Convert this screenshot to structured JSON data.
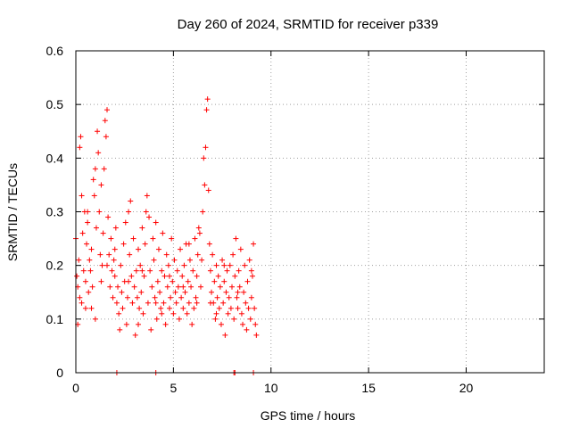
{
  "chart_data": {
    "type": "scatter",
    "title": "Day 260 of 2024, SRMTID for receiver p339",
    "xlabel": "GPS time / hours",
    "ylabel": "SRMTID / TECUs",
    "xlim": [
      0,
      24
    ],
    "ylim": [
      0,
      0.6
    ],
    "x_ticks": [
      0,
      5,
      10,
      15,
      20
    ],
    "y_ticks": [
      0,
      0.1,
      0.2,
      0.3,
      0.4,
      0.5,
      0.6
    ],
    "x_tick_labels": [
      "0",
      "5",
      "10",
      "15",
      "20"
    ],
    "y_tick_labels": [
      "0",
      "0.1",
      "0.2",
      "0.3",
      "0.4",
      "0.5",
      "0.6"
    ],
    "grid": true,
    "marker": "+",
    "color": "#ff0000",
    "series": [
      {
        "name": "SRMTID",
        "points": [
          [
            0.0,
            0.25
          ],
          [
            0.05,
            0.18
          ],
          [
            0.1,
            0.16
          ],
          [
            0.15,
            0.21
          ],
          [
            0.2,
            0.14
          ],
          [
            0.2,
            0.42
          ],
          [
            0.25,
            0.44
          ],
          [
            0.3,
            0.33
          ],
          [
            0.3,
            0.13
          ],
          [
            0.35,
            0.26
          ],
          [
            0.4,
            0.19
          ],
          [
            0.45,
            0.3
          ],
          [
            0.5,
            0.17
          ],
          [
            0.5,
            0.12
          ],
          [
            0.55,
            0.24
          ],
          [
            0.6,
            0.28
          ],
          [
            0.65,
            0.15
          ],
          [
            0.7,
            0.21
          ],
          [
            0.75,
            0.19
          ],
          [
            0.8,
            0.23
          ],
          [
            0.85,
            0.16
          ],
          [
            0.9,
            0.36
          ],
          [
            0.95,
            0.33
          ],
          [
            1.0,
            0.38
          ],
          [
            1.0,
            0.1
          ],
          [
            1.05,
            0.27
          ],
          [
            1.1,
            0.45
          ],
          [
            1.15,
            0.41
          ],
          [
            1.2,
            0.3
          ],
          [
            1.25,
            0.22
          ],
          [
            1.3,
            0.35
          ],
          [
            1.35,
            0.2
          ],
          [
            1.4,
            0.26
          ],
          [
            1.45,
            0.38
          ],
          [
            1.5,
            0.47
          ],
          [
            1.55,
            0.44
          ],
          [
            1.6,
            0.49
          ],
          [
            1.65,
            0.29
          ],
          [
            1.7,
            0.22
          ],
          [
            1.75,
            0.16
          ],
          [
            1.8,
            0.25
          ],
          [
            1.85,
            0.19
          ],
          [
            1.9,
            0.14
          ],
          [
            1.95,
            0.21
          ],
          [
            2.0,
            0.18
          ],
          [
            2.05,
            0.27
          ],
          [
            2.1,
            0.13
          ],
          [
            2.15,
            0.16
          ],
          [
            2.2,
            0.11
          ],
          [
            2.25,
            0.08
          ],
          [
            2.3,
            0.2
          ],
          [
            2.35,
            0.15
          ],
          [
            2.4,
            0.12
          ],
          [
            2.45,
            0.24
          ],
          [
            2.5,
            0.17
          ],
          [
            2.55,
            0.28
          ],
          [
            2.6,
            0.09
          ],
          [
            2.65,
            0.14
          ],
          [
            2.7,
            0.3
          ],
          [
            2.75,
            0.22
          ],
          [
            2.8,
            0.32
          ],
          [
            2.85,
            0.18
          ],
          [
            2.9,
            0.13
          ],
          [
            2.95,
            0.25
          ],
          [
            3.0,
            0.16
          ],
          [
            3.05,
            0.07
          ],
          [
            3.1,
            0.19
          ],
          [
            3.15,
            0.14
          ],
          [
            3.2,
            0.23
          ],
          [
            3.25,
            0.12
          ],
          [
            3.3,
            0.2
          ],
          [
            3.35,
            0.15
          ],
          [
            3.4,
            0.27
          ],
          [
            3.45,
            0.11
          ],
          [
            3.5,
            0.18
          ],
          [
            3.55,
            0.24
          ],
          [
            3.6,
            0.3
          ],
          [
            3.65,
            0.33
          ],
          [
            3.7,
            0.13
          ],
          [
            3.75,
            0.29
          ],
          [
            3.8,
            0.19
          ],
          [
            3.85,
            0.08
          ],
          [
            3.9,
            0.16
          ],
          [
            3.95,
            0.25
          ],
          [
            4.0,
            0.21
          ],
          [
            4.05,
            0.14
          ],
          [
            4.1,
            0.28
          ],
          [
            4.15,
            0.1
          ],
          [
            4.2,
            0.17
          ],
          [
            4.25,
            0.23
          ],
          [
            4.3,
            0.15
          ],
          [
            4.35,
            0.12
          ],
          [
            4.4,
            0.19
          ],
          [
            4.45,
            0.26
          ],
          [
            4.5,
            0.13
          ],
          [
            4.55,
            0.18
          ],
          [
            4.6,
            0.09
          ],
          [
            4.65,
            0.22
          ],
          [
            4.7,
            0.16
          ],
          [
            4.75,
            0.2
          ],
          [
            4.8,
            0.12
          ],
          [
            4.85,
            0.14
          ],
          [
            4.9,
            0.25
          ],
          [
            4.95,
            0.17
          ],
          [
            5.0,
            0.11
          ],
          [
            5.05,
            0.21
          ],
          [
            5.1,
            0.15
          ],
          [
            5.15,
            0.13
          ],
          [
            5.2,
            0.19
          ],
          [
            5.25,
            0.16
          ],
          [
            5.3,
            0.1
          ],
          [
            5.35,
            0.23
          ],
          [
            5.4,
            0.14
          ],
          [
            5.45,
            0.18
          ],
          [
            5.5,
            0.12
          ],
          [
            5.55,
            0.2
          ],
          [
            5.6,
            0.15
          ],
          [
            5.65,
            0.24
          ],
          [
            5.7,
            0.11
          ],
          [
            5.75,
            0.17
          ],
          [
            5.8,
            0.13
          ],
          [
            5.85,
            0.21
          ],
          [
            5.9,
            0.16
          ],
          [
            5.95,
            0.09
          ],
          [
            6.0,
            0.19
          ],
          [
            6.05,
            0.12
          ],
          [
            6.1,
            0.25
          ],
          [
            6.15,
            0.14
          ],
          [
            6.2,
            0.18
          ],
          [
            6.25,
            0.22
          ],
          [
            6.3,
            0.27
          ],
          [
            6.35,
            0.26
          ],
          [
            6.4,
            0.16
          ],
          [
            6.45,
            0.21
          ],
          [
            6.5,
            0.3
          ],
          [
            6.55,
            0.4
          ],
          [
            6.6,
            0.35
          ],
          [
            6.65,
            0.42
          ],
          [
            6.7,
            0.49
          ],
          [
            6.75,
            0.51
          ],
          [
            6.8,
            0.34
          ],
          [
            6.85,
            0.24
          ],
          [
            6.9,
            0.19
          ],
          [
            6.95,
            0.15
          ],
          [
            7.0,
            0.22
          ],
          [
            7.05,
            0.13
          ],
          [
            7.1,
            0.17
          ],
          [
            7.15,
            0.1
          ],
          [
            7.2,
            0.2
          ],
          [
            7.25,
            0.14
          ],
          [
            7.3,
            0.18
          ],
          [
            7.35,
            0.12
          ],
          [
            7.4,
            0.16
          ],
          [
            7.45,
            0.09
          ],
          [
            7.5,
            0.21
          ],
          [
            7.55,
            0.13
          ],
          [
            7.6,
            0.17
          ],
          [
            7.65,
            0.07
          ],
          [
            7.7,
            0.15
          ],
          [
            7.75,
            0.19
          ],
          [
            7.8,
            0.11
          ],
          [
            7.85,
            0.14
          ],
          [
            7.9,
            0.2
          ],
          [
            7.95,
            0.12
          ],
          [
            8.0,
            0.16
          ],
          [
            8.05,
            0.22
          ],
          [
            8.1,
            0.1
          ],
          [
            8.15,
            0.18
          ],
          [
            8.2,
            0.25
          ],
          [
            8.25,
            0.14
          ],
          [
            8.3,
            0.12
          ],
          [
            8.35,
            0.19
          ],
          [
            8.4,
            0.16
          ],
          [
            8.45,
            0.23
          ],
          [
            8.5,
            0.11
          ],
          [
            8.55,
            0.09
          ],
          [
            8.6,
            0.15
          ],
          [
            8.65,
            0.2
          ],
          [
            8.7,
            0.13
          ],
          [
            8.75,
            0.08
          ],
          [
            8.8,
            0.17
          ],
          [
            8.85,
            0.12
          ],
          [
            8.9,
            0.21
          ],
          [
            8.95,
            0.1
          ],
          [
            9.0,
            0.14
          ],
          [
            9.05,
            0.18
          ],
          [
            9.1,
            0.24
          ],
          [
            9.15,
            0.12
          ],
          [
            9.2,
            0.09
          ],
          [
            9.25,
            0.07
          ],
          [
            0.1,
            0.09
          ],
          [
            0.6,
            0.3
          ],
          [
            1.3,
            0.17
          ],
          [
            2.0,
            0.23
          ],
          [
            2.7,
            0.17
          ],
          [
            3.4,
            0.19
          ],
          [
            4.1,
            0.13
          ],
          [
            4.8,
            0.18
          ],
          [
            5.5,
            0.16
          ],
          [
            6.2,
            0.13
          ],
          [
            6.9,
            0.13
          ],
          [
            7.6,
            0.2
          ],
          [
            8.3,
            0.15
          ],
          [
            9.0,
            0.19
          ],
          [
            0.8,
            0.12
          ],
          [
            1.6,
            0.2
          ],
          [
            3.2,
            0.09
          ],
          [
            4.4,
            0.11
          ],
          [
            5.8,
            0.24
          ],
          [
            7.2,
            0.11
          ],
          [
            2.1,
            0.0
          ],
          [
            4.1,
            0.0
          ],
          [
            8.1,
            0.0
          ],
          [
            8.15,
            0.0
          ],
          [
            9.1,
            0.0
          ]
        ]
      }
    ]
  }
}
